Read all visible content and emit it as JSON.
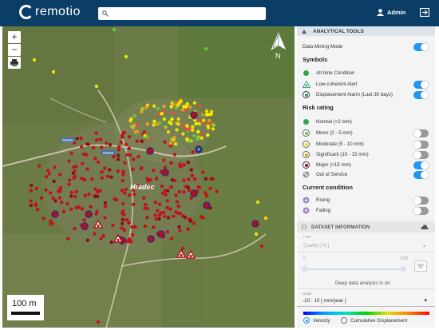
{
  "header": {
    "logo_text": "remotio",
    "search_placeholder": "",
    "user": "Admin"
  },
  "map": {
    "zoom_in": "+",
    "zoom_out": "−",
    "north_label": "N",
    "place_label": "Hradec",
    "road_label_1": "E5060",
    "road_label_2": "E5068",
    "scale_label": "100 m"
  },
  "panel": {
    "analytical_title": "ANALYTICAL TOOLS",
    "data_mining": {
      "label": "Data Mining Mode",
      "on": true
    },
    "symbols_title": "Symbols",
    "symbols": [
      {
        "label": "All-time Condition",
        "toggle": null
      },
      {
        "label": "Low-coherent Alert",
        "toggle": true
      },
      {
        "label": "Displacement Alarm (Last 30 days)",
        "toggle": true
      }
    ],
    "risk_title": "Risk rating",
    "risk": [
      {
        "label": "Normal (<2 mm)",
        "color": "#2aa84a",
        "toggle": null
      },
      {
        "label": "Minor (2 - 5 mm)",
        "color": "#7dc242",
        "toggle": false
      },
      {
        "label": "Moderate (5 - 10 mm)",
        "color": "#d8e600",
        "toggle": false
      },
      {
        "label": "Significant (10 - 15 mm)",
        "color": "#e8a100",
        "toggle": false
      },
      {
        "label": "Major (>15 mm)",
        "color": "#c00000",
        "toggle": true
      },
      {
        "label": "Out of Service",
        "color": "#999999",
        "toggle": true
      }
    ],
    "condition_title": "Current condition",
    "condition": [
      {
        "label": "Rising",
        "toggle": false
      },
      {
        "label": "Falling",
        "toggle": false
      }
    ],
    "dataset_title": "DATASET INFORMATION",
    "filter_label": "Filter",
    "quality_label": "Quality [ % ]",
    "slider_min": "0",
    "slider_max": "100",
    "deep_analysis": "Deep data analysis is on",
    "scale_label": "Scale",
    "scale_value": "-10 : 10 [ mm/year ]",
    "radio_velocity": "Velocity",
    "radio_cumulative": "Cumulative Displacement"
  },
  "colors": {
    "header": "#0a3e66",
    "accent": "#2196f3",
    "point_red": "#c0141a"
  }
}
